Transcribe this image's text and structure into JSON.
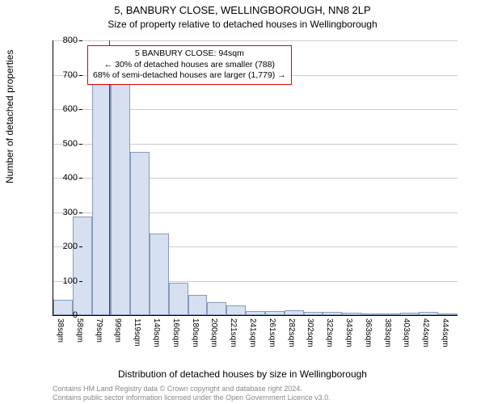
{
  "title": "5, BANBURY CLOSE, WELLINGBOROUGH, NN8 2LP",
  "subtitle": "Size of property relative to detached houses in Wellingborough",
  "chart": {
    "type": "histogram",
    "ylabel": "Number of detached properties",
    "xlabel": "Distribution of detached houses by size in Wellingborough",
    "ylim": [
      0,
      800
    ],
    "ytick_step": 100,
    "yticks": [
      "0",
      "100",
      "200",
      "300",
      "400",
      "500",
      "600",
      "700",
      "800"
    ],
    "x_categories": [
      "38sqm",
      "58sqm",
      "79sqm",
      "99sqm",
      "119sqm",
      "140sqm",
      "160sqm",
      "180sqm",
      "200sqm",
      "221sqm",
      "241sqm",
      "261sqm",
      "282sqm",
      "302sqm",
      "322sqm",
      "343sqm",
      "363sqm",
      "383sqm",
      "403sqm",
      "424sqm",
      "444sqm"
    ],
    "values": [
      45,
      287,
      676,
      685,
      476,
      237,
      95,
      60,
      37,
      29,
      12,
      12,
      13,
      10,
      10,
      8,
      5,
      4,
      8,
      10,
      4
    ],
    "bar_fill": "#d6e0f0",
    "bar_border": "#8899bb",
    "background_color": "#ffffff",
    "grid_color": "#cccccc",
    "marker_x_index": 2.9,
    "marker_color": "#dd0000",
    "label_fontsize": 12,
    "tick_fontsize": 11,
    "title_fontsize": 13
  },
  "legend": {
    "line1": "5 BANBURY CLOSE: 94sqm",
    "line2": "← 30% of detached houses are smaller (788)",
    "line3": "68% of semi-detached houses are larger (1,779) →"
  },
  "credit": {
    "line1": "Contains HM Land Registry data © Crown copyright and database right 2024.",
    "line2": "Contains public sector information licensed under the Open Government Licence v3.0."
  }
}
